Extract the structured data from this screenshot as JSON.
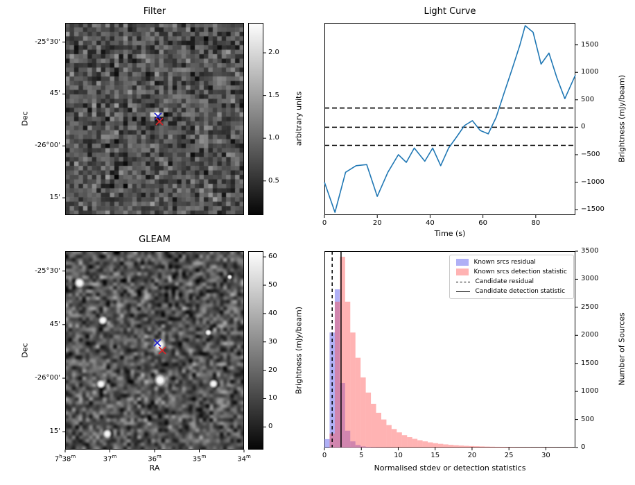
{
  "chart_data": [
    {
      "id": "filter",
      "type": "heatmap",
      "title": "Filter",
      "ylabel": "Dec",
      "yticks": [
        "-25°30'",
        "45'",
        "-26°00'",
        "15'"
      ],
      "colorbar": {
        "label": "arbitrary units",
        "ticks": [
          2.0,
          1.5,
          1.0,
          0.5
        ],
        "vmin": 0.1,
        "vmax": 2.35
      },
      "cmap": "gray",
      "description": "Grayscale filtered noise image with a bright candidate point source at centre marked by blue and red crosses",
      "markers": [
        {
          "shape": "x",
          "color": "#2222cc",
          "fx": 0.519,
          "fy": 0.487
        },
        {
          "shape": "x",
          "color": "#d62728",
          "fx": 0.527,
          "fy": 0.513
        }
      ]
    },
    {
      "id": "light_curve",
      "type": "line",
      "title": "Light Curve",
      "xlabel": "Time (s)",
      "ylabel": "Brightness (mJy/beam)",
      "xlim": [
        0,
        95
      ],
      "ylim": [
        -1600,
        1900
      ],
      "xticks": [
        0,
        20,
        40,
        60,
        80
      ],
      "yticks": [
        -1500,
        -1000,
        -500,
        0,
        500,
        1000,
        1500
      ],
      "line_color": "#1f77b4",
      "x": [
        0,
        4,
        8,
        12,
        16,
        20,
        24,
        28,
        31,
        34,
        38,
        41,
        44,
        47,
        50,
        53,
        56,
        59,
        62,
        65,
        68,
        71,
        74,
        76,
        79,
        82,
        85,
        88,
        91,
        95
      ],
      "y": [
        -1000,
        -1550,
        -820,
        -700,
        -680,
        -1260,
        -820,
        -500,
        -640,
        -380,
        -620,
        -380,
        -700,
        -380,
        -180,
        30,
        120,
        -60,
        -120,
        180,
        620,
        1050,
        1500,
        1850,
        1730,
        1150,
        1350,
        900,
        520,
        950
      ],
      "hlines": [
        {
          "y": 350,
          "style": "dashed"
        },
        {
          "y": 0,
          "style": "dashed"
        },
        {
          "y": -330,
          "style": "dashed"
        }
      ]
    },
    {
      "id": "gleam",
      "type": "heatmap",
      "title": "GLEAM",
      "xlabel": "RA",
      "ylabel": "Dec",
      "xticks": [
        "7h38m",
        "37m",
        "36m",
        "35m",
        "34m"
      ],
      "yticks": [
        "-25°30'",
        "45'",
        "-26°00'",
        "15'"
      ],
      "colorbar": {
        "label": "Brightness (mJy/beam)",
        "ticks": [
          60,
          50,
          40,
          30,
          20,
          10,
          0
        ],
        "vmin": -8,
        "vmax": 62
      },
      "cmap": "gray",
      "description": "GLEAM reference sky image; known sources appear as bright blobs, candidate position marked by blue and red crosses",
      "sources": [
        {
          "fx": 0.08,
          "fy": 0.16,
          "r": 8
        },
        {
          "fx": 0.21,
          "fy": 0.35,
          "r": 7
        },
        {
          "fx": 0.527,
          "fy": 0.472,
          "r": 10
        },
        {
          "fx": 0.53,
          "fy": 0.65,
          "r": 9
        },
        {
          "fx": 0.2,
          "fy": 0.67,
          "r": 7
        },
        {
          "fx": 0.83,
          "fy": 0.668,
          "r": 7
        },
        {
          "fx": 0.236,
          "fy": 0.92,
          "r": 7
        },
        {
          "fx": 0.8,
          "fy": 0.41,
          "r": 5
        },
        {
          "fx": 0.92,
          "fy": 0.13,
          "r": 4
        }
      ],
      "markers": [
        {
          "shape": "x",
          "color": "#2222cc",
          "fx": 0.515,
          "fy": 0.462
        },
        {
          "shape": "x",
          "color": "#d62728",
          "fx": 0.543,
          "fy": 0.5
        }
      ]
    },
    {
      "id": "histogram",
      "type": "bar",
      "xlabel": "Normalised stdev or detection statistics",
      "ylabel": "Number of Sources",
      "xlim": [
        0,
        34
      ],
      "ylim": [
        0,
        3500
      ],
      "xticks": [
        0,
        5,
        10,
        15,
        20,
        25,
        30
      ],
      "yticks": [
        0,
        500,
        1000,
        1500,
        2000,
        2500,
        3000,
        3500
      ],
      "bin_start": 0,
      "bin_width": 0.7,
      "series": [
        {
          "name": "Known srcs residual",
          "color": "rgba(80,80,235,0.45)",
          "values": [
            150,
            2050,
            2820,
            1150,
            300,
            110,
            45,
            20,
            10,
            5,
            3,
            2,
            1,
            1
          ]
        },
        {
          "name": "Known srcs detection statistic",
          "color": "rgba(255,75,75,0.42)",
          "values": [
            0,
            250,
            2600,
            3400,
            2600,
            2050,
            1600,
            1250,
            980,
            780,
            620,
            500,
            400,
            330,
            270,
            220,
            185,
            155,
            130,
            110,
            92,
            78,
            66,
            56,
            48,
            41,
            35,
            30,
            26,
            23,
            20,
            17,
            15,
            13,
            12,
            10,
            9,
            8,
            7,
            7,
            6,
            6,
            5,
            5,
            5,
            4,
            4,
            4
          ]
        }
      ],
      "vlines": [
        {
          "x": 1.05,
          "style": "dashed",
          "label": "Candidate residual"
        },
        {
          "x": 2.25,
          "style": "solid",
          "label": "Candidate detection statistic"
        }
      ]
    }
  ]
}
